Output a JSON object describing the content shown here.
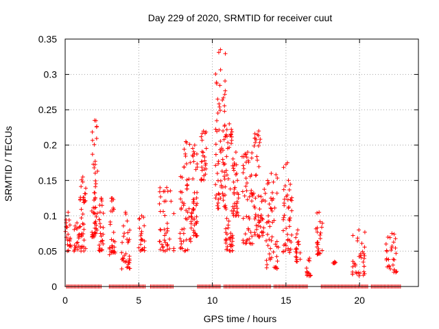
{
  "colors": {
    "marker": "#ff0000",
    "axes": "#000000",
    "grid": "#a0a0a0",
    "background": "#ffffff"
  },
  "chart_data": {
    "type": "scatter",
    "title": "Day 229 of 2020, SRMTID for receiver cuut",
    "xlabel": "GPS time / hours",
    "ylabel": "SRMTID / TECUs",
    "xlim": [
      0,
      24
    ],
    "ylim": [
      0,
      0.35
    ],
    "x_ticks": [
      0,
      5,
      10,
      15,
      20
    ],
    "x_tick_labels": [
      "0",
      "5",
      "10",
      "15",
      "20"
    ],
    "y_ticks": [
      0,
      0.05,
      0.1,
      0.15,
      0.2,
      0.25,
      0.3,
      0.35
    ],
    "y_tick_labels": [
      "0",
      "0.05",
      "0.1",
      "0.15",
      "0.2",
      "0.25",
      "0.3",
      "0.35"
    ],
    "grid": true,
    "marker": "+",
    "series": [
      {
        "name": "SRMTID",
        "note": "approximate values read from plot; dense scatter of several hundred points",
        "clusters": [
          {
            "x": [
              0.0,
              0.4
            ],
            "y": [
              0.05,
              0.105
            ]
          },
          {
            "x": [
              0.6,
              1.0
            ],
            "y": [
              0.05,
              0.09
            ]
          },
          {
            "x": [
              1.0,
              1.4
            ],
            "y": [
              0.05,
              0.155
            ]
          },
          {
            "x": [
              1.8,
              2.2
            ],
            "y": [
              0.07,
              0.235
            ]
          },
          {
            "x": [
              2.3,
              2.6
            ],
            "y": [
              0.05,
              0.125
            ]
          },
          {
            "x": [
              3.0,
              3.4
            ],
            "y": [
              0.045,
              0.125
            ]
          },
          {
            "x": [
              3.8,
              4.4
            ],
            "y": [
              0.025,
              0.105
            ]
          },
          {
            "x": [
              5.0,
              5.4
            ],
            "y": [
              0.05,
              0.1
            ]
          },
          {
            "x": [
              6.4,
              7.4
            ],
            "y": [
              0.05,
              0.14
            ]
          },
          {
            "x": [
              7.8,
              8.6
            ],
            "y": [
              0.05,
              0.205
            ]
          },
          {
            "x": [
              8.6,
              9.0
            ],
            "y": [
              0.07,
              0.2
            ]
          },
          {
            "x": [
              9.2,
              9.6
            ],
            "y": [
              0.15,
              0.22
            ]
          },
          {
            "x": [
              10.2,
              10.9
            ],
            "y": [
              0.11,
              0.335
            ]
          },
          {
            "x": [
              10.9,
              11.4
            ],
            "y": [
              0.05,
              0.23
            ]
          },
          {
            "x": [
              11.4,
              11.8
            ],
            "y": [
              0.1,
              0.19
            ]
          },
          {
            "x": [
              12.0,
              12.8
            ],
            "y": [
              0.06,
              0.19
            ]
          },
          {
            "x": [
              12.8,
              13.5
            ],
            "y": [
              0.07,
              0.22
            ]
          },
          {
            "x": [
              13.5,
              14.5
            ],
            "y": [
              0.025,
              0.16
            ]
          },
          {
            "x": [
              14.8,
              15.4
            ],
            "y": [
              0.045,
              0.175
            ]
          },
          {
            "x": [
              15.6,
              16.0
            ],
            "y": [
              0.035,
              0.08
            ]
          },
          {
            "x": [
              16.4,
              16.8
            ],
            "y": [
              0.015,
              0.04
            ]
          },
          {
            "x": [
              17.0,
              17.5
            ],
            "y": [
              0.045,
              0.105
            ]
          },
          {
            "x": [
              18.2,
              18.4
            ],
            "y": [
              0.033,
              0.035
            ]
          },
          {
            "x": [
              19.5,
              20.4
            ],
            "y": [
              0.015,
              0.08
            ]
          },
          {
            "x": [
              21.8,
              22.6
            ],
            "y": [
              0.02,
              0.075
            ]
          }
        ],
        "zero_level_points_x_ranges": [
          [
            0.1,
            2.5
          ],
          [
            3.0,
            5.5
          ],
          [
            5.8,
            7.4
          ],
          [
            9.0,
            10.6
          ],
          [
            10.8,
            14.0
          ],
          [
            14.2,
            16.5
          ],
          [
            17.4,
            20.6
          ],
          [
            20.8,
            22.8
          ]
        ]
      }
    ]
  }
}
